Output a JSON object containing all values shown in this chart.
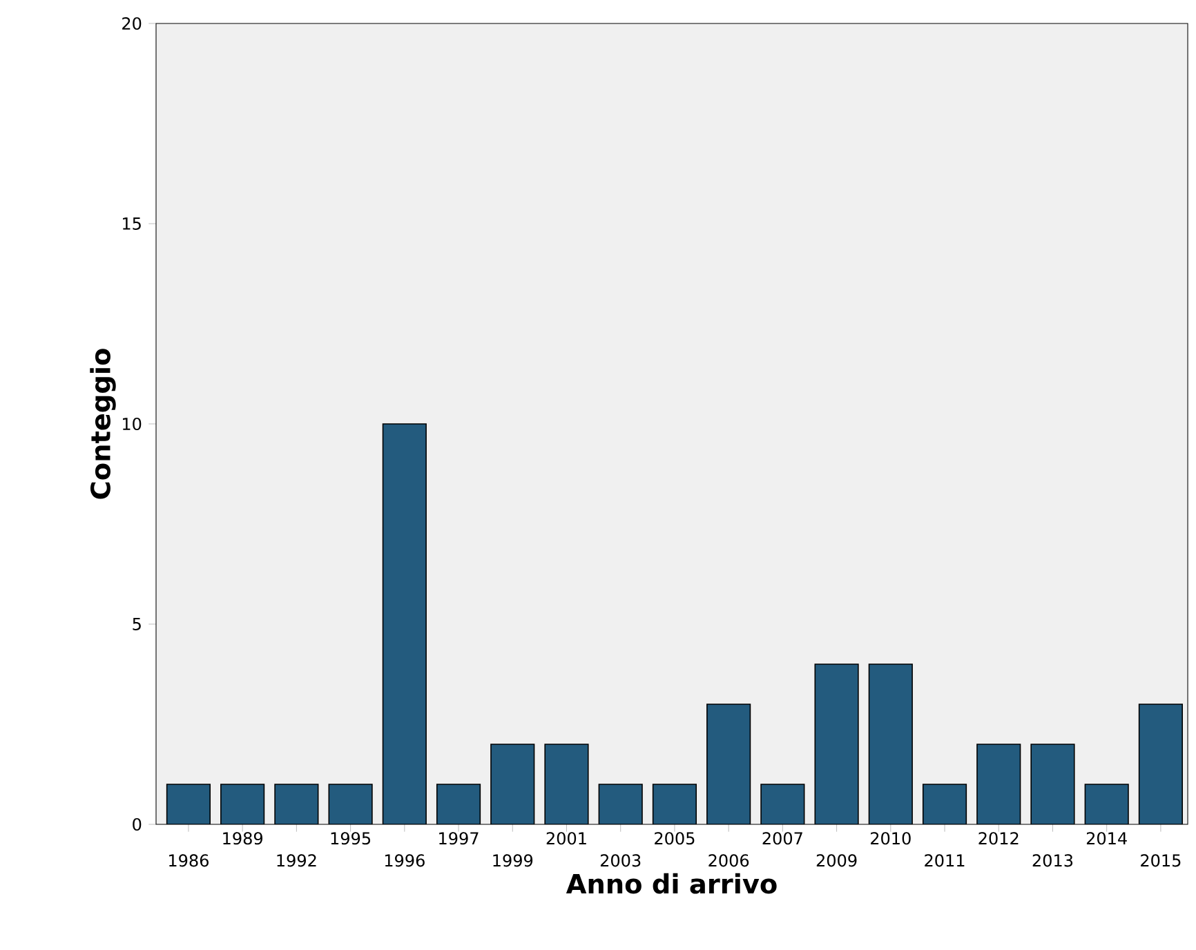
{
  "chart_data": {
    "type": "bar",
    "xlabel": "Anno di arrivo",
    "ylabel": "Conteggio",
    "categories": [
      "1986",
      "1989",
      "1992",
      "1995",
      "1996",
      "1997",
      "1999",
      "2001",
      "2003",
      "2005",
      "2006",
      "2007",
      "2009",
      "2010",
      "2011",
      "2012",
      "2013",
      "2014",
      "2015"
    ],
    "values": [
      1,
      1,
      1,
      1,
      10,
      1,
      2,
      2,
      1,
      1,
      3,
      1,
      4,
      4,
      1,
      2,
      2,
      1,
      3
    ],
    "color": "#235b7e",
    "ylim": [
      0,
      20
    ],
    "yticks": [
      0,
      5,
      10,
      15,
      20
    ]
  }
}
